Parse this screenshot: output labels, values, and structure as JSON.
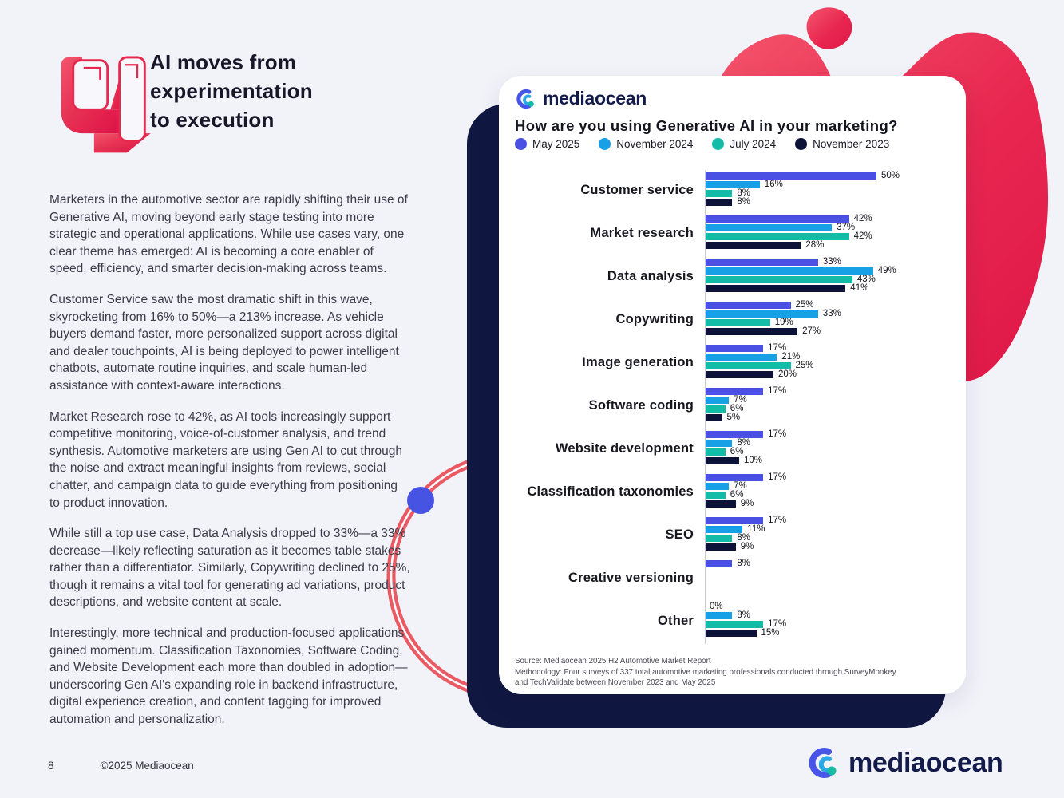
{
  "page": {
    "number": "8",
    "copyright": "©2025 Mediaocean",
    "section_number": "4",
    "heading_lines": [
      "AI moves from",
      "experimentation",
      "to execution"
    ],
    "paragraphs": [
      "Marketers in the automotive sector are rapidly shifting their use of Generative AI, moving beyond early stage testing into more strategic and operational applications. While use cases vary, one clear theme has emerged: AI is becoming a core enabler of speed, efficiency, and smarter decision-making across teams.",
      "Customer Service saw the most dramatic shift in this wave, skyrocketing from 16% to 50%—a 213% increase. As vehicle buyers demand faster, more personalized support across digital and dealer touchpoints, AI is being deployed to power intelligent chatbots, automate routine inquiries, and scale human-led assistance with context-aware interactions.",
      "Market Research rose to 42%, as AI tools increasingly support competitive monitoring, voice-of-customer analysis, and trend synthesis. Automotive marketers are using Gen AI to cut through the noise and extract meaningful insights from reviews, social chatter, and campaign data to guide everything from positioning to product innovation.",
      "While still a top use case, Data Analysis dropped to 33%—a 33% decrease—likely reflecting saturation as it becomes table stakes rather than a differentiator. Similarly, Copywriting declined to 25%, though it remains a vital tool for generating ad variations, product descriptions, and website content at scale.",
      "Interestingly, more technical and production-focused applications gained momentum. Classification Taxonomies, Software Coding, and Website Development each more than doubled in adoption—underscoring Gen AI's expanding role in backend infrastructure, digital experience creation, and content tagging for improved automation and personalization."
    ]
  },
  "brand": {
    "logo_text": "mediaocean",
    "navy": "#131B4A",
    "accent_red": "#E6214B"
  },
  "chart_data": {
    "type": "bar",
    "orientation": "horizontal",
    "title": "How are you using Generative AI in your marketing?",
    "unit": "%",
    "xlim": [
      0,
      50
    ],
    "grid": false,
    "legend_position": "top",
    "categories": [
      "Customer service",
      "Market research",
      "Data analysis",
      "Copywriting",
      "Image generation",
      "Software coding",
      "Website development",
      "Classification taxonomies",
      "SEO",
      "Creative versioning",
      "Other"
    ],
    "series": [
      {
        "name": "May 2025",
        "color": "#4A50E4",
        "values": [
          50,
          42,
          33,
          25,
          17,
          17,
          17,
          17,
          17,
          8,
          0
        ]
      },
      {
        "name": "November 2024",
        "color": "#17A0E6",
        "values": [
          16,
          37,
          49,
          33,
          21,
          7,
          8,
          7,
          11,
          null,
          8
        ]
      },
      {
        "name": "July 2024",
        "color": "#12BCA6",
        "values": [
          8,
          42,
          43,
          19,
          25,
          6,
          6,
          6,
          8,
          null,
          17
        ]
      },
      {
        "name": "November 2023",
        "color": "#0C1238",
        "values": [
          8,
          28,
          41,
          27,
          20,
          5,
          10,
          9,
          9,
          null,
          15
        ]
      }
    ],
    "footnotes": [
      "Source: Mediaocean 2025 H2 Automotive Market Report",
      "Methodology: Four surveys of 337 total automotive marketing professionals conducted through SurveyMonkey",
      "and TechValidate between November 2023 and May 2025"
    ]
  }
}
